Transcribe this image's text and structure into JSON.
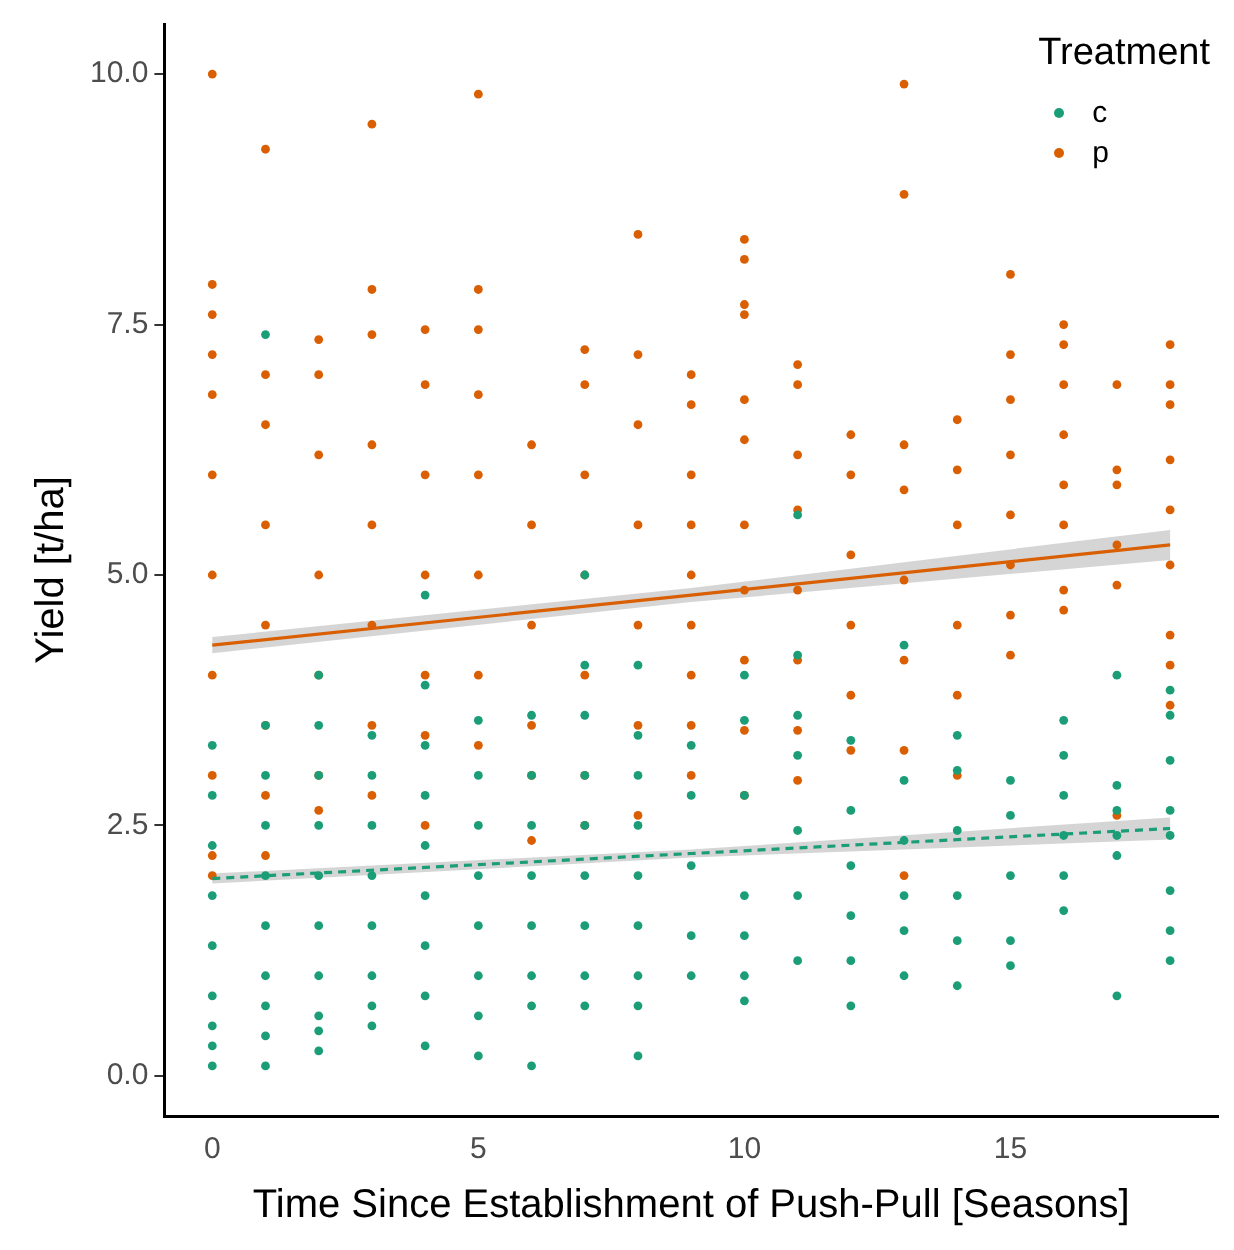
{
  "chart_data": {
    "type": "scatter",
    "xlabel": "Time Since Establishment of Push-Pull [Seasons]",
    "ylabel": "Yield [t/ha]",
    "legend_title": "Treatment",
    "legend": "top right",
    "grid": false,
    "xlim": [
      -0.9,
      18.9
    ],
    "ylim": [
      -0.4,
      10.5
    ],
    "xticks": [
      0,
      5,
      10,
      15
    ],
    "yticks": [
      {
        "value": 0,
        "label": "0.0"
      },
      {
        "value": 2.5,
        "label": "2.5"
      },
      {
        "value": 5,
        "label": "5.0"
      },
      {
        "value": 7.5,
        "label": "7.5"
      },
      {
        "value": 10,
        "label": "10.0"
      }
    ],
    "series": [
      {
        "name": "c",
        "color": "#1b9e77",
        "marker": "circle",
        "x": [
          0,
          0,
          0,
          0,
          0,
          0,
          0,
          0,
          0,
          1,
          1,
          1,
          1,
          1,
          1,
          1,
          1,
          1,
          1,
          2,
          2,
          2,
          2,
          2,
          2,
          2,
          2,
          2,
          2,
          3,
          3,
          3,
          3,
          3,
          3,
          3,
          3,
          4,
          4,
          4,
          4,
          4,
          4,
          4,
          4,
          4,
          5,
          5,
          5,
          5,
          5,
          5,
          5,
          5,
          6,
          6,
          6,
          6,
          6,
          6,
          6,
          6,
          7,
          7,
          7,
          7,
          7,
          7,
          7,
          7,
          7,
          8,
          8,
          8,
          8,
          8,
          8,
          8,
          8,
          8,
          9,
          9,
          9,
          9,
          9,
          10,
          10,
          10,
          10,
          10,
          10,
          10,
          11,
          11,
          11,
          11,
          11,
          11,
          11,
          12,
          12,
          12,
          12,
          12,
          12,
          13,
          13,
          13,
          13,
          13,
          13,
          14,
          14,
          14,
          14,
          14,
          14,
          15,
          15,
          15,
          15,
          15,
          16,
          16,
          16,
          16,
          16,
          16,
          17,
          17,
          17,
          17,
          17,
          17,
          18,
          18,
          18,
          18,
          18,
          18,
          18,
          18
        ],
        "values": [
          3.3,
          2.8,
          2.3,
          1.8,
          1.3,
          0.8,
          0.5,
          0.3,
          0.1,
          7.4,
          3.5,
          3.0,
          2.5,
          2.0,
          1.5,
          1.0,
          0.7,
          0.4,
          0.1,
          4.0,
          3.5,
          3.0,
          2.5,
          2.0,
          1.5,
          1.0,
          0.6,
          0.45,
          0.25,
          3.4,
          3.0,
          2.5,
          2.0,
          1.5,
          1.0,
          0.7,
          0.5,
          4.8,
          3.9,
          3.3,
          2.8,
          2.3,
          1.8,
          1.3,
          0.8,
          0.3,
          3.55,
          3.0,
          2.5,
          2.0,
          1.5,
          1.0,
          0.6,
          0.2,
          3.6,
          3.0,
          2.5,
          2.0,
          1.5,
          1.0,
          0.7,
          0.1,
          5.0,
          4.1,
          3.6,
          3.0,
          2.5,
          2.0,
          1.5,
          1.0,
          0.7,
          4.1,
          3.4,
          3.0,
          2.5,
          2.0,
          1.5,
          1.0,
          0.7,
          0.2,
          3.3,
          2.8,
          2.1,
          1.4,
          1.0,
          4.0,
          3.55,
          2.8,
          1.8,
          1.4,
          1.0,
          0.75,
          5.6,
          4.2,
          3.6,
          3.2,
          2.45,
          1.8,
          1.15,
          3.35,
          2.65,
          2.1,
          1.6,
          1.15,
          0.7,
          4.3,
          2.95,
          2.35,
          1.8,
          1.45,
          1.0,
          3.4,
          3.05,
          2.45,
          1.8,
          1.35,
          0.9,
          2.95,
          2.6,
          2.0,
          1.35,
          1.1,
          3.55,
          3.2,
          2.8,
          2.4,
          2.0,
          1.65,
          4.0,
          2.9,
          2.65,
          2.4,
          2.2,
          0.8,
          3.85,
          3.6,
          3.15,
          2.65,
          2.4,
          1.85,
          1.45,
          1.15
        ]
      },
      {
        "name": "p",
        "color": "#d95f02",
        "marker": "circle",
        "x": [
          0,
          0,
          0,
          0,
          0,
          0,
          0,
          0,
          0,
          0,
          0,
          1,
          1,
          1,
          1,
          1,
          1,
          1,
          1,
          2,
          2,
          2,
          2,
          2,
          2,
          2,
          3,
          3,
          3,
          3,
          3,
          3,
          3,
          3,
          4,
          4,
          4,
          4,
          4,
          4,
          4,
          5,
          5,
          5,
          5,
          5,
          5,
          5,
          5,
          6,
          6,
          6,
          6,
          6,
          6,
          7,
          7,
          7,
          7,
          7,
          7,
          7,
          8,
          8,
          8,
          8,
          8,
          8,
          8,
          9,
          9,
          9,
          9,
          9,
          9,
          9,
          9,
          9,
          10,
          10,
          10,
          10,
          10,
          10,
          10,
          10,
          10,
          10,
          10,
          11,
          11,
          11,
          11,
          11,
          11,
          11,
          11,
          12,
          12,
          12,
          12,
          12,
          12,
          13,
          13,
          13,
          13,
          13,
          13,
          13,
          13,
          14,
          14,
          14,
          14,
          14,
          14,
          15,
          15,
          15,
          15,
          15,
          15,
          15,
          15,
          16,
          16,
          16,
          16,
          16,
          16,
          16,
          16,
          17,
          17,
          17,
          17,
          17,
          17,
          18,
          18,
          18,
          18,
          18,
          18,
          18,
          18,
          18
        ],
        "values": [
          10.0,
          7.9,
          7.6,
          7.2,
          6.8,
          6.0,
          5.0,
          4.0,
          3.0,
          2.2,
          2.0,
          9.25,
          7.0,
          6.5,
          5.5,
          4.5,
          3.5,
          2.8,
          2.2,
          7.35,
          7.0,
          6.2,
          5.0,
          4.0,
          3.0,
          2.65,
          9.5,
          7.85,
          7.4,
          6.3,
          5.5,
          4.5,
          3.5,
          2.8,
          7.45,
          6.9,
          6.0,
          5.0,
          4.0,
          3.4,
          2.5,
          9.8,
          7.85,
          7.45,
          6.8,
          6.0,
          5.0,
          4.0,
          3.3,
          6.3,
          5.5,
          4.5,
          3.5,
          3.0,
          2.35,
          7.25,
          6.9,
          6.0,
          5.0,
          4.0,
          3.0,
          2.5,
          8.4,
          7.2,
          6.5,
          5.5,
          4.5,
          3.5,
          2.6,
          7.0,
          6.7,
          6.0,
          5.5,
          5.0,
          4.5,
          4.0,
          3.5,
          3.0,
          8.35,
          8.15,
          7.7,
          7.6,
          6.75,
          6.35,
          5.5,
          4.85,
          4.15,
          3.45,
          2.8,
          7.1,
          6.9,
          6.2,
          5.65,
          4.85,
          4.15,
          3.45,
          2.95,
          6.4,
          6.0,
          5.2,
          4.5,
          3.8,
          3.25,
          9.9,
          8.8,
          6.3,
          5.85,
          4.95,
          4.15,
          3.25,
          2.0,
          6.55,
          6.05,
          5.5,
          4.5,
          3.8,
          3.0,
          8.0,
          7.2,
          6.75,
          6.2,
          5.6,
          5.1,
          4.6,
          4.2,
          7.5,
          7.3,
          6.9,
          6.4,
          5.9,
          5.5,
          4.85,
          4.65,
          6.9,
          6.05,
          5.9,
          5.3,
          4.9,
          2.6,
          7.3,
          6.9,
          6.7,
          6.15,
          5.65,
          5.1,
          4.4,
          4.1,
          3.7
        ]
      },
      {
        "type": "line",
        "color": "#1b9e77",
        "marker": "none",
        "line_style": "dashed",
        "x": [
          0,
          9,
          18
        ],
        "values": [
          1.97,
          2.22,
          2.47
        ],
        "lower": [
          1.92,
          2.18,
          2.36
        ],
        "upper": [
          2.02,
          2.26,
          2.58
        ]
      },
      {
        "type": "line",
        "color": "#d95f02",
        "marker": "none",
        "line_style": "solid",
        "x": [
          0,
          9,
          18
        ],
        "values": [
          4.3,
          4.8,
          5.3
        ],
        "lower": [
          4.22,
          4.73,
          5.15
        ],
        "upper": [
          4.38,
          4.87,
          5.45
        ]
      }
    ]
  }
}
